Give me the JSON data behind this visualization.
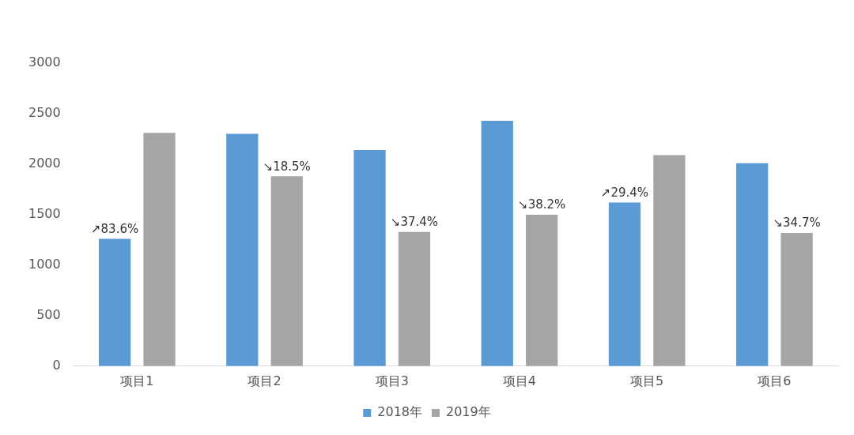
{
  "chart_data": {
    "type": "bar",
    "categories": [
      "项目1",
      "项目2",
      "项目3",
      "项目4",
      "项目5",
      "项目6"
    ],
    "series": [
      {
        "name": "2018年",
        "color": "#5b9bd5",
        "values": [
          1260,
          2300,
          2140,
          2430,
          1620,
          2010
        ]
      },
      {
        "name": "2019年",
        "color": "#a5a5a5",
        "values": [
          2310,
          1880,
          1330,
          1500,
          2090,
          1320
        ]
      }
    ],
    "ylim": [
      0,
      3000
    ],
    "yticks": [
      0,
      500,
      1000,
      1500,
      2000,
      2500,
      3000
    ],
    "grid": false,
    "legend": "bottom",
    "annotations": [
      "↗83.6%",
      "↘18.5%",
      "↘37.4%",
      "↘38.2%",
      "↗29.4%",
      "↘34.7%"
    ]
  }
}
